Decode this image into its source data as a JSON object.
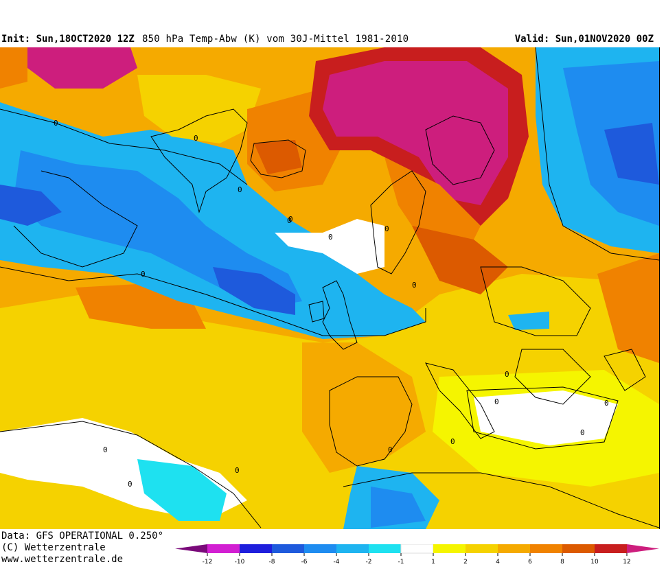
{
  "header": {
    "init": "Init: Sun,18OCT2020 12Z",
    "title": "850 hPa Temp-Abw (K) vom 30J-Mittel 1981-2010",
    "valid": "Valid: Sun,01NOV2020 00Z"
  },
  "footer": {
    "data_source": "Data: GFS OPERATIONAL 0.250°",
    "copyright": "(C) Wetterzentrale",
    "website": "www.wetterzentrale.de"
  },
  "colorbar": {
    "ticks": [
      "-12",
      "-10",
      "-8",
      "-6",
      "-4",
      "-2",
      "-1",
      "1",
      "2",
      "4",
      "6",
      "8",
      "10",
      "12"
    ],
    "colors": [
      "#7a0a7a",
      "#d21fd2",
      "#1e1edc",
      "#1e5adc",
      "#1e8cf0",
      "#1eb4f0",
      "#1ee1f0",
      "#ffffff",
      "#f5f500",
      "#f5d200",
      "#f5aa00",
      "#f08200",
      "#dc5a00",
      "#c81e1e",
      "#cd1e7d"
    ]
  },
  "contour_labels": [
    "0",
    "0",
    "0",
    "0",
    "0",
    "0",
    "0",
    "0",
    "0",
    "0",
    "0",
    "0",
    "0",
    "0",
    "0",
    "0",
    "0",
    "0"
  ]
}
